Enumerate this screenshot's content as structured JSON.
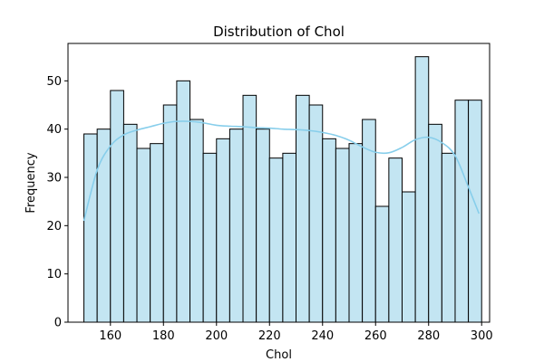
{
  "chart_data": {
    "type": "bar",
    "title": "Distribution of Chol",
    "xlabel": "Chol",
    "ylabel": "Frequency",
    "xlim": [
      144,
      303
    ],
    "ylim": [
      0,
      57.75
    ],
    "xticks": [
      160,
      180,
      200,
      220,
      240,
      260,
      280,
      300
    ],
    "yticks": [
      0,
      10,
      20,
      30,
      40,
      50
    ],
    "bin_start": 150,
    "bin_width": 5,
    "values": [
      39,
      40,
      48,
      41,
      36,
      37,
      45,
      50,
      42,
      35,
      38,
      40,
      47,
      40,
      34,
      35,
      47,
      45,
      38,
      36,
      37,
      42,
      24,
      34,
      27,
      55,
      41,
      35,
      46,
      46
    ],
    "kde": {
      "x": [
        150,
        155,
        160,
        165,
        170,
        175,
        180,
        185,
        190,
        195,
        200,
        205,
        210,
        215,
        220,
        225,
        230,
        235,
        240,
        245,
        250,
        255,
        260,
        265,
        270,
        275,
        280,
        285,
        290,
        295,
        299
      ],
      "y": [
        21,
        31.5,
        36.5,
        38.8,
        39.8,
        40.5,
        41.2,
        41.6,
        41.6,
        41.3,
        40.8,
        40.6,
        40.5,
        40.3,
        40.2,
        40.0,
        39.9,
        39.7,
        39.3,
        38.7,
        37.7,
        36.3,
        35.2,
        35.1,
        36.2,
        37.8,
        38.3,
        37.2,
        34.5,
        28.0,
        22.5
      ]
    },
    "grid": false,
    "colors": {
      "bar_fill": "#c3e5f2",
      "bar_edge": "#000000",
      "kde_line": "#87ceeb"
    }
  }
}
